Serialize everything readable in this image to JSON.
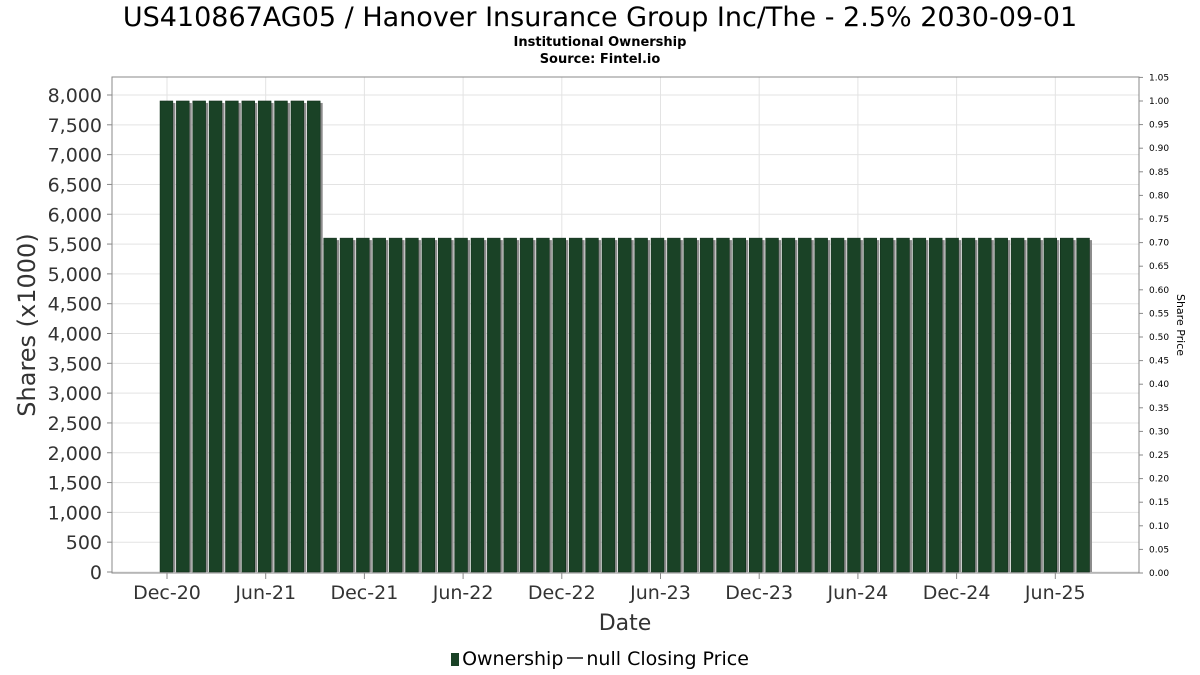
{
  "header": {
    "title": "US410867AG05 / Hanover Insurance Group Inc/The - 2.5% 2030-09-01",
    "subtitle1": "Institutional Ownership",
    "subtitle2": "Source: Fintel.io"
  },
  "legend": {
    "ownership": "Ownership",
    "closing_price": "null Closing Price"
  },
  "colors": {
    "bar": "#1a4226",
    "bar_shadow": "#8c8c8c",
    "grid": "#e3e3e3",
    "plot_border": "#888888"
  },
  "chart_data": {
    "type": "bar",
    "xlabel": "Date",
    "ylabel": "Shares (x1000)",
    "y2label": "Share Price",
    "ylim": [
      0,
      8300
    ],
    "y2lim": [
      0,
      1.05
    ],
    "yticks": [
      "0",
      "500",
      "1,000",
      "1,500",
      "2,000",
      "2,500",
      "3,000",
      "3,500",
      "4,000",
      "4,500",
      "5,000",
      "5,500",
      "6,000",
      "6,500",
      "7,000",
      "7,500",
      "8,000"
    ],
    "y2ticks": [
      "0.00",
      "0.05",
      "0.10",
      "0.15",
      "0.20",
      "0.25",
      "0.30",
      "0.35",
      "0.40",
      "0.45",
      "0.50",
      "0.55",
      "0.60",
      "0.65",
      "0.70",
      "0.75",
      "0.80",
      "0.85",
      "0.90",
      "0.95",
      "1.00",
      "1.05"
    ],
    "xticks": [
      "Dec-20",
      "Jun-21",
      "Dec-21",
      "Jun-22",
      "Dec-22",
      "Jun-23",
      "Dec-23",
      "Jun-24",
      "Dec-24",
      "Jun-25"
    ],
    "grid": true,
    "legend_position": "bottom",
    "series": [
      {
        "name": "Ownership",
        "values": [
          7900,
          7900,
          7900,
          7900,
          7900,
          7900,
          7900,
          7900,
          7900,
          7900,
          5600,
          5600,
          5600,
          5600,
          5600,
          5600,
          5600,
          5600,
          5600,
          5600,
          5600,
          5600,
          5600,
          5600,
          5600,
          5600,
          5600,
          5600,
          5600,
          5600,
          5600,
          5600,
          5600,
          5600,
          5600,
          5600,
          5600,
          5600,
          5600,
          5600,
          5600,
          5600,
          5600,
          5600,
          5600,
          5600,
          5600,
          5600,
          5600,
          5600,
          5600,
          5600,
          5600,
          5600,
          5600,
          5600,
          5600
        ]
      },
      {
        "name": "null Closing Price",
        "values": []
      }
    ]
  }
}
